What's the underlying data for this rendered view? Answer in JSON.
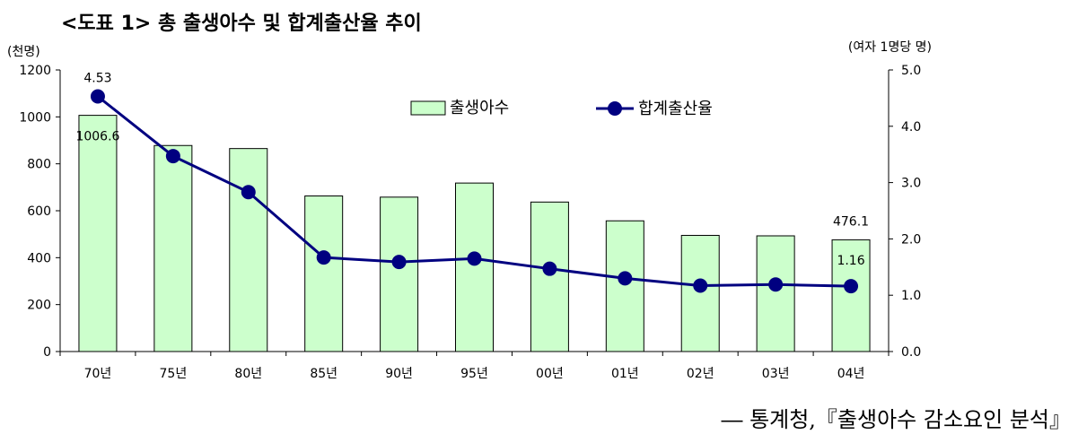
{
  "title": "<도표 1> 총 출생아수 및 합계출산율 추이",
  "source": "― 통계청,『출생아수 감소요인 분석』",
  "chart_data": {
    "type": "bar+line",
    "categories": [
      "70년",
      "75년",
      "80년",
      "85년",
      "90년",
      "95년",
      "00년",
      "01년",
      "02년",
      "03년",
      "04년"
    ],
    "left_axis": {
      "unit_label": "(천명)",
      "ylim": [
        0,
        1200
      ],
      "ticks": [
        "0",
        "200",
        "400",
        "600",
        "800",
        "1000",
        "1200"
      ]
    },
    "right_axis": {
      "unit_label": "(여자 1명당 명)",
      "ylim": [
        0,
        5
      ],
      "ticks": [
        "0.0",
        "1.0",
        "2.0",
        "3.0",
        "4.0",
        "5.0"
      ]
    },
    "series": [
      {
        "name": "출생아수",
        "kind": "bar",
        "axis": "left",
        "color": "#ccffcc",
        "values": [
          1006.6,
          878,
          865,
          663,
          658,
          718,
          637,
          557,
          495,
          493,
          476.1
        ]
      },
      {
        "name": "합계출산율",
        "kind": "line",
        "axis": "right",
        "color": "#000080",
        "values": [
          4.53,
          3.47,
          2.83,
          1.67,
          1.59,
          1.65,
          1.47,
          1.3,
          1.17,
          1.19,
          1.16
        ]
      }
    ],
    "data_labels": [
      {
        "series": "출생아수",
        "index": 0,
        "text": "1006.6"
      },
      {
        "series": "출생아수",
        "index": 10,
        "text": "476.1"
      },
      {
        "series": "합계출산율",
        "index": 0,
        "text": "4.53"
      },
      {
        "series": "합계출산율",
        "index": 10,
        "text": "1.16"
      }
    ],
    "legend_position": "top-right"
  }
}
